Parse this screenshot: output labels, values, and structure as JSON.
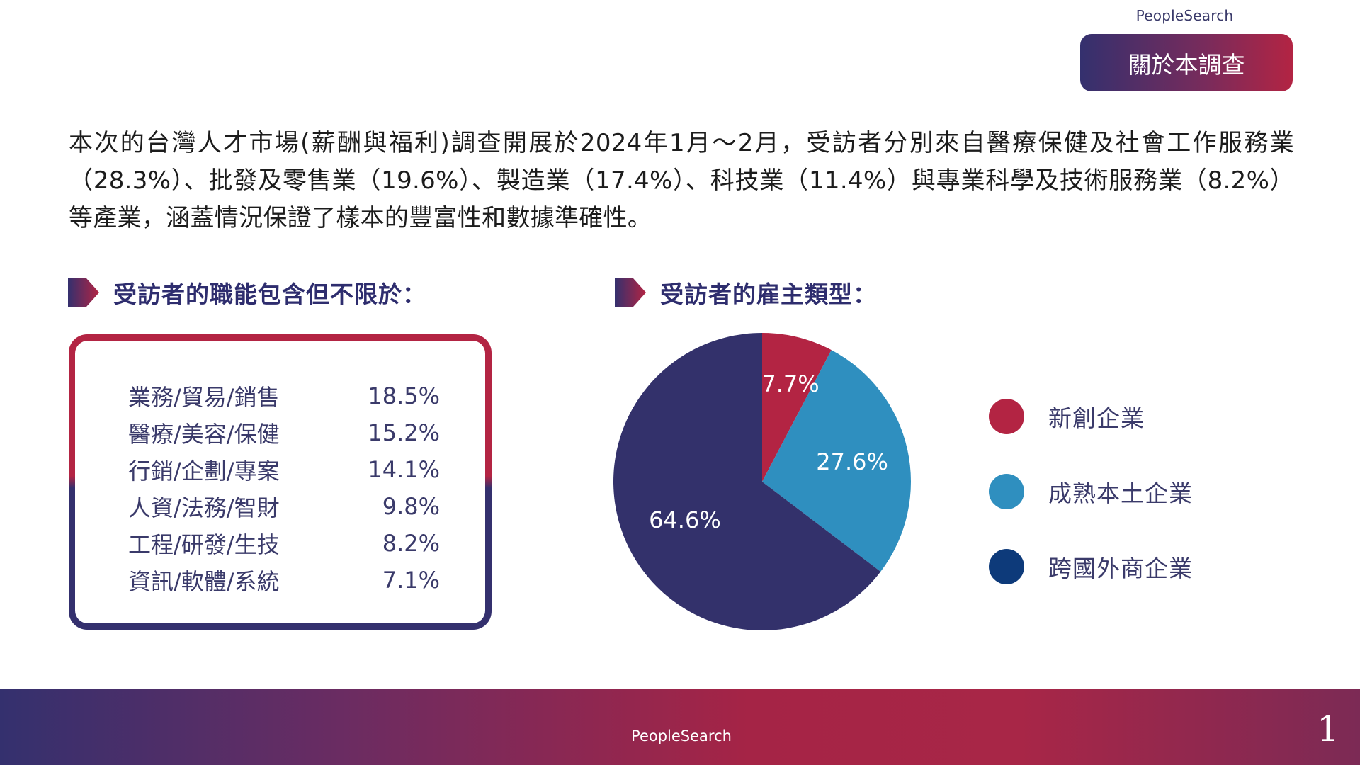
{
  "header": {
    "brand": "PeopleSearch",
    "title": "關於本調查"
  },
  "intro": {
    "text": "本次的台灣人才市場(薪酬與福利)調查開展於2024年1月～2月，受訪者分別來自醫療保健及社會工作服務業（28.3%）、批發及零售業（19.6%）、製造業（17.4%）、科技業（11.4%）與專業科學及技術服務業（8.2%）等產業，涵蓋情況保證了樣本的豐富性和數據準確性。"
  },
  "functions": {
    "heading": "受訪者的職能包含但不限於：",
    "items": [
      {
        "label": "業務/貿易/銷售",
        "value": "18.5%"
      },
      {
        "label": "醫療/美容/保健",
        "value": "15.2%"
      },
      {
        "label": "行銷/企劃/專案",
        "value": "14.1%"
      },
      {
        "label": "人資/法務/智財",
        "value": "9.8%"
      },
      {
        "label": "工程/研發/生技",
        "value": "8.2%"
      },
      {
        "label": "資訊/軟體/系統",
        "value": "7.1%"
      }
    ]
  },
  "employer": {
    "heading": "受訪者的雇主類型："
  },
  "chart_data": {
    "type": "pie",
    "title": "",
    "start": "12 o'clock, clockwise",
    "categories": [
      "新創企業",
      "成熟本土企業",
      "跨國外商企業"
    ],
    "values": [
      7.7,
      27.6,
      64.6
    ],
    "labels": [
      "7.7%",
      "27.6%",
      "64.6%"
    ],
    "slice_colors": [
      "#b32443",
      "#2f8fbf",
      "#33316b"
    ],
    "legend": {
      "placement": "right",
      "labels": [
        "新創企業",
        "成熟本土企業",
        "跨國外商企業"
      ],
      "dot_colors": [
        "#b32443",
        "#2f8fbf",
        "#0d3a7a"
      ]
    }
  },
  "footer": {
    "brand": "PeopleSearch",
    "page_number": "1"
  },
  "colors": {
    "navy": "#34306e",
    "crimson": "#b32443",
    "blue": "#2f8fbf"
  }
}
